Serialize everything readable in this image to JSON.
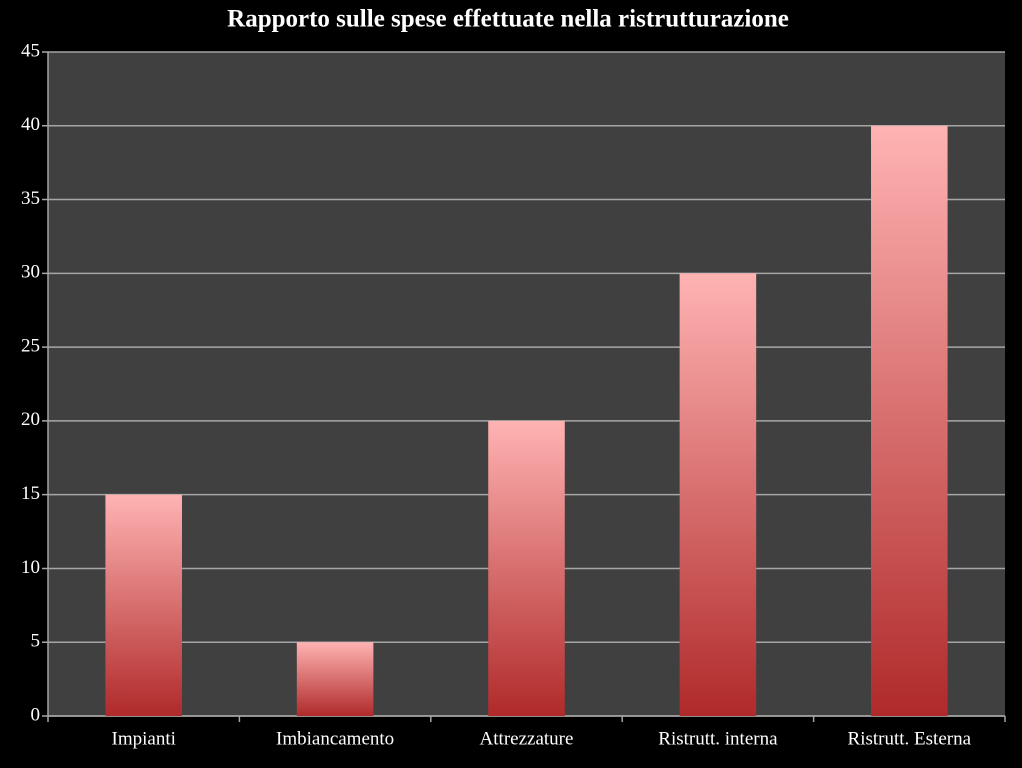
{
  "chart_data": {
    "type": "bar",
    "title": "Rapporto sulle spese effettuate nella ristrutturazione",
    "categories": [
      "Impianti",
      "Imbiancamento",
      "Attrezzature",
      "Ristrutt. interna",
      "Ristrutt. Esterna"
    ],
    "values": [
      15,
      5,
      20,
      30,
      40
    ],
    "gradient_colors": [
      "#ffb3b3",
      "#b02a2a"
    ],
    "ylim": [
      0,
      45
    ],
    "yticks": [
      0,
      5,
      10,
      15,
      20,
      25,
      30,
      35,
      40,
      45
    ],
    "grid": true
  }
}
